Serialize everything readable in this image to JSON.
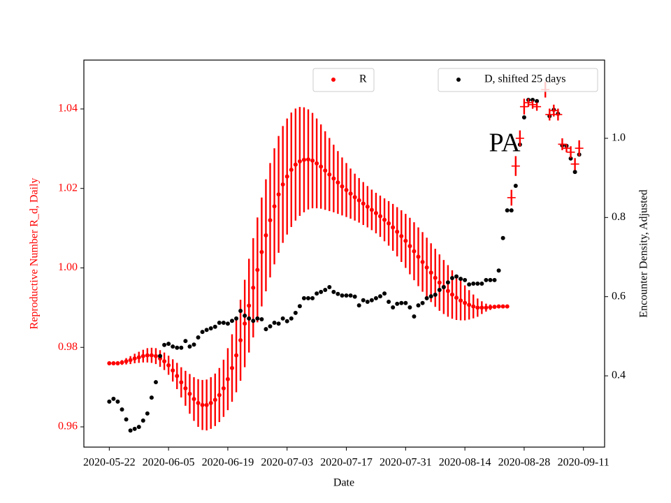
{
  "chart_data": {
    "type": "errorbar_scatter",
    "xlabel": "Date",
    "ylabel": "Reproductive Number R_d, Daily",
    "y2label": "Encounter Density, Adjusted",
    "annotations": [
      {
        "text": "PA"
      }
    ],
    "xlim": [
      "2020-05-16",
      "2020-09-16"
    ],
    "xticks": [
      "2020-05-22",
      "2020-06-05",
      "2020-06-19",
      "2020-07-03",
      "2020-07-17",
      "2020-07-31",
      "2020-08-14",
      "2020-08-28",
      "2020-09-11"
    ],
    "ylim": [
      0.9549,
      1.0523
    ],
    "yticks": [
      0.96,
      0.98,
      {
        "value": 1.0,
        "label": "1.00"
      },
      1.02,
      1.04
    ],
    "y2lim": [
      0.22,
      1.1976
    ],
    "y2ticks": [
      0.4,
      0.6,
      0.8,
      {
        "value": 1.0,
        "label": "1.0"
      }
    ],
    "ylabel_color": "red",
    "series": [
      {
        "name": "R",
        "color": "red",
        "legend": "upper center",
        "marker": "o",
        "x": [
          "2020-05-22",
          "2020-05-23",
          "2020-05-24",
          "2020-05-25",
          "2020-05-26",
          "2020-05-27",
          "2020-05-28",
          "2020-05-29",
          "2020-05-30",
          "2020-05-31",
          "2020-06-01",
          "2020-06-02",
          "2020-06-03",
          "2020-06-04",
          "2020-06-05",
          "2020-06-06",
          "2020-06-07",
          "2020-06-08",
          "2020-06-09",
          "2020-06-10",
          "2020-06-11",
          "2020-06-12",
          "2020-06-13",
          "2020-06-14",
          "2020-06-15",
          "2020-06-16",
          "2020-06-17",
          "2020-06-18",
          "2020-06-19",
          "2020-06-20",
          "2020-06-21",
          "2020-06-22",
          "2020-06-23",
          "2020-06-24",
          "2020-06-25",
          "2020-06-26",
          "2020-06-27",
          "2020-06-28",
          "2020-06-29",
          "2020-06-30",
          "2020-07-01",
          "2020-07-02",
          "2020-07-03",
          "2020-07-04",
          "2020-07-05",
          "2020-07-06",
          "2020-07-07",
          "2020-07-08",
          "2020-07-09",
          "2020-07-10",
          "2020-07-11",
          "2020-07-12",
          "2020-07-13",
          "2020-07-14",
          "2020-07-15",
          "2020-07-16",
          "2020-07-17",
          "2020-07-18",
          "2020-07-19",
          "2020-07-20",
          "2020-07-21",
          "2020-07-22",
          "2020-07-23",
          "2020-07-24",
          "2020-07-25",
          "2020-07-26",
          "2020-07-27",
          "2020-07-28",
          "2020-07-29",
          "2020-07-30",
          "2020-07-31",
          "2020-08-01",
          "2020-08-02",
          "2020-08-03",
          "2020-08-04",
          "2020-08-05",
          "2020-08-06",
          "2020-08-07",
          "2020-08-08",
          "2020-08-09",
          "2020-08-10",
          "2020-08-11",
          "2020-08-12",
          "2020-08-13",
          "2020-08-14",
          "2020-08-15",
          "2020-08-16",
          "2020-08-17",
          "2020-08-18",
          "2020-08-19",
          "2020-08-20",
          "2020-08-21",
          "2020-08-22",
          "2020-08-23",
          "2020-08-24"
        ],
        "values": [
          0.976,
          0.976,
          0.976,
          0.9762,
          0.9765,
          0.9768,
          0.9772,
          0.9775,
          0.9778,
          0.978,
          0.978,
          0.9778,
          0.9772,
          0.9765,
          0.9755,
          0.9742,
          0.9728,
          0.9712,
          0.9697,
          0.9683,
          0.967,
          0.966,
          0.9655,
          0.9655,
          0.966,
          0.9668,
          0.968,
          0.9697,
          0.972,
          0.9748,
          0.978,
          0.9818,
          0.986,
          0.9905,
          0.995,
          0.9995,
          1.004,
          1.0082,
          1.012,
          1.0155,
          1.0185,
          1.021,
          1.023,
          1.0247,
          1.026,
          1.0268,
          1.0272,
          1.0273,
          1.027,
          1.0263,
          1.0255,
          1.0245,
          1.0235,
          1.0225,
          1.0215,
          1.0205,
          1.0196,
          1.0187,
          1.0178,
          1.017,
          1.0162,
          1.0154,
          1.0146,
          1.0138,
          1.013,
          1.0121,
          1.0112,
          1.0102,
          1.0091,
          1.008,
          1.0068,
          1.0055,
          1.0042,
          1.0028,
          1.0015,
          1.0001,
          0.9988,
          0.9975,
          0.9963,
          0.9952,
          0.9942,
          0.9933,
          0.9925,
          0.9918,
          0.9912,
          0.9907,
          0.9903,
          0.99,
          0.99,
          0.99,
          0.9901,
          0.9902,
          0.9903,
          0.9903,
          0.9903
        ],
        "errors": [
          0.0003,
          0.0004,
          0.0005,
          0.0006,
          0.0008,
          0.001,
          0.0012,
          0.0014,
          0.0016,
          0.0018,
          0.0019,
          0.002,
          0.0021,
          0.0022,
          0.0024,
          0.0028,
          0.0033,
          0.0038,
          0.0044,
          0.005,
          0.0055,
          0.006,
          0.0063,
          0.0064,
          0.0065,
          0.0066,
          0.0068,
          0.0072,
          0.0078,
          0.0085,
          0.0093,
          0.0102,
          0.011,
          0.0118,
          0.0125,
          0.0132,
          0.0137,
          0.0141,
          0.0144,
          0.0146,
          0.0147,
          0.0147,
          0.0146,
          0.0144,
          0.0141,
          0.0137,
          0.0132,
          0.0126,
          0.012,
          0.0113,
          0.0106,
          0.0099,
          0.0092,
          0.0085,
          0.0079,
          0.0073,
          0.0068,
          0.0063,
          0.0059,
          0.0056,
          0.0054,
          0.0052,
          0.0051,
          0.0051,
          0.0052,
          0.0054,
          0.0056,
          0.0059,
          0.0062,
          0.0065,
          0.0068,
          0.0071,
          0.0073,
          0.0074,
          0.0075,
          0.0075,
          0.0074,
          0.0073,
          0.0071,
          0.0068,
          0.0065,
          0.0061,
          0.0056,
          0.005,
          0.0044,
          0.0037,
          0.003,
          0.0023,
          0.0016,
          0.001,
          0.0007,
          0.0005,
          0.0004,
          0.0003,
          0.0002
        ]
      },
      {
        "name": "D, shifted 25 days",
        "color": "black",
        "axis": "y2",
        "legend": "upper right",
        "marker": "o",
        "x": [
          "2020-05-22",
          "2020-05-23",
          "2020-05-24",
          "2020-05-25",
          "2020-05-26",
          "2020-05-27",
          "2020-05-28",
          "2020-05-29",
          "2020-05-30",
          "2020-05-31",
          "2020-06-01",
          "2020-06-02",
          "2020-06-03",
          "2020-06-04",
          "2020-06-05",
          "2020-06-06",
          "2020-06-07",
          "2020-06-08",
          "2020-06-09",
          "2020-06-10",
          "2020-06-11",
          "2020-06-12",
          "2020-06-13",
          "2020-06-14",
          "2020-06-15",
          "2020-06-16",
          "2020-06-17",
          "2020-06-18",
          "2020-06-19",
          "2020-06-20",
          "2020-06-21",
          "2020-06-22",
          "2020-06-23",
          "2020-06-24",
          "2020-06-25",
          "2020-06-26",
          "2020-06-27",
          "2020-06-28",
          "2020-06-29",
          "2020-06-30",
          "2020-07-01",
          "2020-07-02",
          "2020-07-03",
          "2020-07-04",
          "2020-07-05",
          "2020-07-06",
          "2020-07-07",
          "2020-07-08",
          "2020-07-09",
          "2020-07-10",
          "2020-07-11",
          "2020-07-12",
          "2020-07-13",
          "2020-07-14",
          "2020-07-15",
          "2020-07-16",
          "2020-07-17",
          "2020-07-18",
          "2020-07-19",
          "2020-07-20",
          "2020-07-21",
          "2020-07-22",
          "2020-07-23",
          "2020-07-24",
          "2020-07-25",
          "2020-07-26",
          "2020-07-27",
          "2020-07-28",
          "2020-07-29",
          "2020-07-30",
          "2020-07-31",
          "2020-08-01",
          "2020-08-02",
          "2020-08-03",
          "2020-08-04",
          "2020-08-05",
          "2020-08-06",
          "2020-08-07",
          "2020-08-08",
          "2020-08-09",
          "2020-08-10",
          "2020-08-11",
          "2020-08-12",
          "2020-08-13",
          "2020-08-14",
          "2020-08-15",
          "2020-08-16",
          "2020-08-17",
          "2020-08-18",
          "2020-08-19",
          "2020-08-20",
          "2020-08-21",
          "2020-08-22",
          "2020-08-23",
          "2020-08-24",
          "2020-08-25",
          "2020-08-26",
          "2020-08-27",
          "2020-08-28",
          "2020-08-29",
          "2020-08-30",
          "2020-08-31",
          "2020-09-01",
          "2020-09-02",
          "2020-09-03",
          "2020-09-04",
          "2020-09-05",
          "2020-09-06",
          "2020-09-07",
          "2020-09-08",
          "2020-09-09",
          "2020-09-10"
        ],
        "values": [
          0.335,
          0.342,
          0.335,
          0.315,
          0.29,
          0.262,
          0.266,
          0.271,
          0.287,
          0.305,
          0.345,
          0.384,
          0.45,
          0.478,
          0.481,
          0.474,
          0.471,
          0.471,
          0.488,
          0.474,
          0.479,
          0.497,
          0.511,
          0.516,
          0.52,
          0.524,
          0.534,
          0.534,
          0.532,
          0.539,
          0.545,
          0.564,
          0.552,
          0.545,
          0.539,
          0.545,
          0.543,
          0.518,
          0.525,
          0.534,
          0.532,
          0.545,
          0.538,
          0.545,
          0.559,
          0.576,
          0.596,
          0.596,
          0.596,
          0.608,
          0.612,
          0.617,
          0.624,
          0.612,
          0.607,
          0.603,
          0.603,
          0.603,
          0.6,
          0.578,
          0.591,
          0.587,
          0.591,
          0.596,
          0.601,
          0.608,
          0.587,
          0.573,
          0.582,
          0.584,
          0.584,
          0.573,
          0.55,
          0.578,
          0.584,
          0.596,
          0.601,
          0.605,
          0.617,
          0.624,
          0.636,
          0.647,
          0.651,
          0.645,
          0.642,
          0.631,
          0.633,
          0.633,
          0.633,
          0.642,
          0.642,
          0.642,
          0.666,
          0.748,
          0.818,
          0.818,
          0.88,
          0.984,
          1.053,
          1.097,
          1.097,
          1.094,
          null,
          null,
          1.056,
          1.072,
          1.062,
          0.982,
          0.981,
          0.949,
          0.915,
          0.959
        ]
      },
      {
        "color": "red",
        "axis": "y2",
        "marker": "+",
        "x": [
          "2020-08-25",
          "2020-08-26",
          "2020-08-27",
          "2020-08-28",
          "2020-08-29",
          "2020-08-30",
          "2020-08-31",
          "2020-09-01",
          "2020-09-02",
          "2020-09-03",
          "2020-09-04",
          "2020-09-05",
          "2020-09-06",
          "2020-09-07",
          "2020-09-08",
          "2020-09-09",
          "2020-09-10"
        ],
        "values": [
          0.85,
          0.93,
          1.0,
          1.08,
          1.09,
          1.085,
          1.08,
          null,
          1.123,
          1.06,
          1.07,
          1.06,
          0.985,
          0.975,
          0.965,
          0.935,
          0.975
        ],
        "errors": [
          0.02,
          0.025,
          0.02,
          0.02,
          0.01,
          0.01,
          0.01,
          null,
          0.02,
          0.015,
          0.015,
          0.015,
          0.015,
          0.01,
          0.015,
          0.015,
          0.02
        ]
      }
    ]
  }
}
